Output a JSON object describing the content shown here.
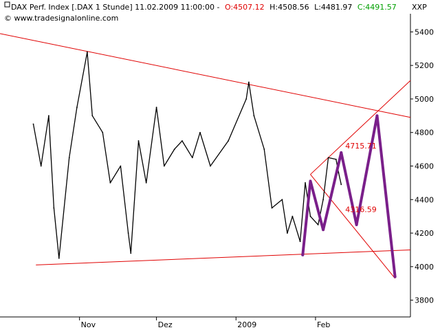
{
  "header": {
    "instrument": "DAX Perf. Index [.DAX  1 Stunde] 11.02.2009 11:00:00 -",
    "open_label": "O:4507.12",
    "high_label": "H:4508.56",
    "low_label": "L:4481.97",
    "close_label": "C:4491.57",
    "source": "© www.tradesignalonline.com",
    "close_button": "XXP"
  },
  "colors": {
    "price": "#000000",
    "trendline": "#e00000",
    "pattern": "#7a1f8a",
    "open_text": "#e00000",
    "close_text": "#00a000"
  },
  "chart_data": {
    "type": "line",
    "title": "DAX Perf. Index [.DAX  1 Stunde]",
    "ylim": [
      3700,
      5500
    ],
    "y_ticks": [
      3800,
      4000,
      4200,
      4400,
      4600,
      4800,
      5000,
      5200,
      5400
    ],
    "x_labels": [
      "Nov",
      "Dez",
      "2009",
      "Feb"
    ],
    "grid": false,
    "series": [
      {
        "role": "price",
        "x": [
          "2008-10-14",
          "2008-10-17",
          "2008-10-20",
          "2008-10-22",
          "2008-10-24",
          "2008-10-28",
          "2008-10-31",
          "2008-11-04",
          "2008-11-06",
          "2008-11-10",
          "2008-11-13",
          "2008-11-17",
          "2008-11-20",
          "2008-11-21",
          "2008-11-24",
          "2008-11-27",
          "2008-12-01",
          "2008-12-04",
          "2008-12-08",
          "2008-12-11",
          "2008-12-15",
          "2008-12-18",
          "2008-12-22",
          "2008-12-29",
          "2009-01-05",
          "2009-01-06",
          "2009-01-08",
          "2009-01-12",
          "2009-01-15",
          "2009-01-19",
          "2009-01-21",
          "2009-01-23",
          "2009-01-26",
          "2009-01-28",
          "2009-01-30",
          "2009-02-02",
          "2009-02-04",
          "2009-02-06",
          "2009-02-09",
          "2009-02-10",
          "2009-02-11"
        ],
        "values": [
          4850,
          4600,
          4900,
          4350,
          4050,
          4650,
          4950,
          5280,
          4900,
          4800,
          4500,
          4600,
          4200,
          4080,
          4750,
          4500,
          4950,
          4600,
          4700,
          4750,
          4650,
          4800,
          4600,
          4750,
          5000,
          5100,
          4900,
          4700,
          4350,
          4400,
          4200,
          4300,
          4150,
          4500,
          4300,
          4250,
          4400,
          4650,
          4640,
          4560,
          4490
        ]
      }
    ],
    "pattern_x": [
      "2009-01-27",
      "2009-01-30",
      "2009-02-04",
      "2009-02-11",
      "2009-02-17",
      "2009-02-25",
      "2009-03-04"
    ],
    "pattern_y": [
      4070,
      4510,
      4220,
      4680,
      4250,
      4900,
      3940
    ],
    "trendlines": [
      {
        "x": [
          "2008-10-01",
          "2009-03-10"
        ],
        "y": [
          5390,
          4890
        ]
      },
      {
        "x": [
          "2008-10-15",
          "2009-03-10"
        ],
        "y": [
          4010,
          4100
        ]
      },
      {
        "x": [
          "2009-01-30",
          "2009-03-10"
        ],
        "y": [
          4550,
          5110
        ]
      },
      {
        "x": [
          "2009-01-30",
          "2009-03-04"
        ],
        "y": [
          4550,
          3930
        ]
      }
    ],
    "annotations": [
      {
        "text": "4715.71",
        "x": "2009-02-11",
        "y": 4705
      },
      {
        "text": "4316.59",
        "x": "2009-02-11",
        "y": 4325
      }
    ]
  }
}
